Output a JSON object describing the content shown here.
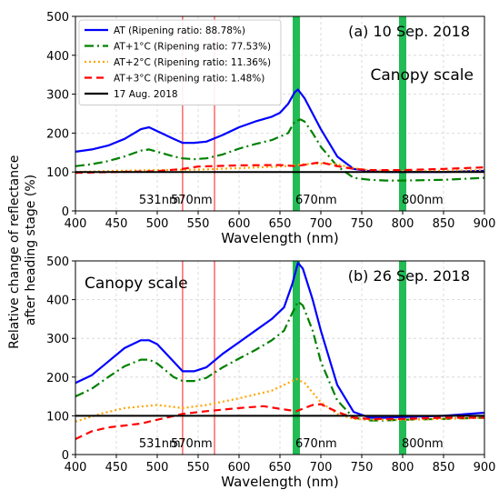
{
  "shared_ylabel_line1": "Relative change of reflectance",
  "shared_ylabel_line2": "after heading stage (%)",
  "colors": {
    "AT": "#0000ff",
    "AT+1": "#008000",
    "AT+2": "#ffa500",
    "AT+3": "#ff0000",
    "baseline": "#000000",
    "vline_thin": "#ff4040",
    "vline_band": "#22bb55"
  },
  "chart_data": [
    {
      "type": "line",
      "panel_title": "(a) 10 Sep. 2018",
      "annotation": "Canopy scale",
      "annotation_position": "right",
      "xlabel": "Wavelength (nm)",
      "xlim": [
        400,
        900
      ],
      "ylim": [
        0,
        500
      ],
      "xticks": [
        "400",
        "450",
        "500",
        "550",
        "600",
        "650",
        "700",
        "750",
        "800",
        "850",
        "900"
      ],
      "yticks": [
        "0",
        "100",
        "200",
        "300",
        "400",
        "500"
      ],
      "grid": true,
      "legend_position": "top-left",
      "wavelength_markers": [
        {
          "label": "531nm",
          "x": 531,
          "style": "thin"
        },
        {
          "label": "570nm",
          "x": 570,
          "style": "thin"
        },
        {
          "label": "670nm",
          "x": 670,
          "style": "band"
        },
        {
          "label": "800nm",
          "x": 800,
          "style": "band"
        }
      ],
      "series": [
        {
          "name": "AT (Ripening ratio: 88.78%)",
          "style": "solid",
          "color_key": "AT",
          "x": [
            400,
            420,
            440,
            460,
            480,
            490,
            500,
            520,
            531,
            545,
            560,
            580,
            600,
            620,
            640,
            650,
            660,
            668,
            672,
            680,
            690,
            700,
            720,
            740,
            760,
            780,
            800,
            850,
            900
          ],
          "y": [
            152,
            158,
            168,
            185,
            210,
            215,
            205,
            185,
            175,
            175,
            178,
            195,
            215,
            230,
            242,
            252,
            275,
            305,
            312,
            290,
            250,
            210,
            140,
            108,
            102,
            100,
            100,
            100,
            103
          ]
        },
        {
          "name": "AT+1°C (Ripening ratio: 77.53%)",
          "style": "dashdot",
          "color_key": "AT+1",
          "x": [
            400,
            420,
            440,
            460,
            480,
            490,
            500,
            520,
            531,
            545,
            560,
            580,
            600,
            620,
            640,
            660,
            668,
            675,
            680,
            690,
            700,
            720,
            740,
            760,
            780,
            800,
            850,
            900
          ],
          "y": [
            115,
            120,
            128,
            140,
            155,
            158,
            152,
            140,
            135,
            133,
            135,
            145,
            160,
            172,
            182,
            200,
            230,
            235,
            230,
            200,
            165,
            115,
            85,
            80,
            78,
            78,
            80,
            85
          ]
        },
        {
          "name": "AT+2°C (Ripening ratio: 11.36%)",
          "style": "dotted",
          "color_key": "AT+2",
          "x": [
            400,
            450,
            500,
            550,
            600,
            650,
            670,
            680,
            700,
            720,
            740,
            760,
            800,
            850,
            900
          ],
          "y": [
            100,
            103,
            105,
            106,
            110,
            114,
            118,
            120,
            122,
            120,
            110,
            104,
            102,
            103,
            105
          ]
        },
        {
          "name": "AT+3°C (Ripening ratio: 1.48%)",
          "style": "dashed",
          "color_key": "AT+3",
          "x": [
            400,
            450,
            500,
            531,
            550,
            600,
            650,
            670,
            690,
            700,
            720,
            740,
            760,
            800,
            850,
            900
          ],
          "y": [
            98,
            100,
            102,
            108,
            114,
            117,
            118,
            115,
            122,
            125,
            115,
            108,
            105,
            105,
            108,
            112
          ]
        },
        {
          "name": "17 Aug. 2018",
          "style": "solid",
          "color_key": "baseline",
          "x": [
            400,
            900
          ],
          "y": [
            100,
            100
          ]
        }
      ]
    },
    {
      "type": "line",
      "panel_title": "(b) 26 Sep. 2018",
      "annotation": "Canopy scale",
      "annotation_position": "left",
      "xlabel": "Wavelength (nm)",
      "xlim": [
        400,
        900
      ],
      "ylim": [
        0,
        500
      ],
      "xticks": [
        "400",
        "450",
        "500",
        "550",
        "600",
        "650",
        "700",
        "750",
        "800",
        "850",
        "900"
      ],
      "yticks": [
        "0",
        "100",
        "200",
        "300",
        "400",
        "500"
      ],
      "grid": true,
      "wavelength_markers": [
        {
          "label": "531nm",
          "x": 531,
          "style": "thin"
        },
        {
          "label": "570nm",
          "x": 570,
          "style": "thin"
        },
        {
          "label": "670nm",
          "x": 670,
          "style": "band"
        },
        {
          "label": "800nm",
          "x": 800,
          "style": "band"
        }
      ],
      "series": [
        {
          "name": "AT",
          "style": "solid",
          "color_key": "AT",
          "x": [
            400,
            420,
            440,
            460,
            480,
            490,
            500,
            520,
            531,
            545,
            560,
            580,
            600,
            620,
            640,
            655,
            665,
            672,
            678,
            690,
            700,
            720,
            740,
            760,
            780,
            800,
            850,
            900
          ],
          "y": [
            185,
            205,
            240,
            275,
            295,
            295,
            285,
            240,
            215,
            215,
            225,
            260,
            290,
            320,
            350,
            380,
            440,
            495,
            480,
            400,
            320,
            180,
            110,
            95,
            95,
            97,
            100,
            108
          ]
        },
        {
          "name": "AT+1°C",
          "style": "dashdot",
          "color_key": "AT+1",
          "x": [
            400,
            420,
            440,
            460,
            480,
            490,
            500,
            520,
            531,
            545,
            560,
            580,
            600,
            620,
            640,
            655,
            665,
            672,
            678,
            690,
            700,
            720,
            740,
            760,
            780,
            800,
            850,
            900
          ],
          "y": [
            150,
            170,
            200,
            228,
            245,
            245,
            235,
            200,
            190,
            190,
            198,
            225,
            248,
            270,
            295,
            320,
            365,
            395,
            385,
            320,
            240,
            140,
            95,
            88,
            88,
            90,
            92,
            95
          ]
        },
        {
          "name": "AT+2°C",
          "style": "dotted",
          "color_key": "AT+2",
          "x": [
            400,
            430,
            460,
            500,
            531,
            560,
            600,
            640,
            660,
            670,
            680,
            700,
            720,
            740,
            760,
            800,
            850,
            900
          ],
          "y": [
            85,
            105,
            120,
            128,
            120,
            128,
            145,
            165,
            185,
            195,
            185,
            135,
            105,
            92,
            90,
            90,
            92,
            95
          ]
        },
        {
          "name": "AT+3°C",
          "style": "dashed",
          "color_key": "AT+3",
          "x": [
            400,
            420,
            440,
            460,
            480,
            500,
            531,
            560,
            600,
            630,
            650,
            670,
            690,
            700,
            720,
            740,
            760,
            800,
            850,
            900
          ],
          "y": [
            40,
            60,
            70,
            75,
            80,
            90,
            105,
            112,
            120,
            125,
            118,
            112,
            128,
            130,
            110,
            95,
            92,
            92,
            95,
            95
          ]
        },
        {
          "name": "17 Aug. 2018",
          "style": "solid",
          "color_key": "baseline",
          "x": [
            400,
            900
          ],
          "y": [
            100,
            100
          ]
        }
      ]
    }
  ]
}
